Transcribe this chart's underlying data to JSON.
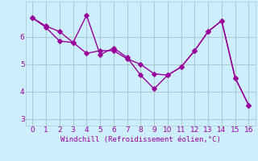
{
  "x": [
    0,
    1,
    2,
    3,
    4,
    5,
    6,
    7,
    8,
    9,
    10,
    11,
    12,
    13,
    14,
    15,
    16
  ],
  "line1": [
    6.7,
    6.4,
    6.2,
    5.8,
    5.4,
    5.5,
    5.5,
    5.2,
    5.0,
    4.65,
    4.6,
    4.9,
    5.5,
    6.2,
    6.6,
    4.5,
    3.5
  ],
  "line2": [
    6.7,
    6.35,
    5.85,
    5.8,
    6.8,
    5.35,
    5.6,
    5.25,
    4.6,
    4.1,
    4.6,
    4.9,
    5.5,
    6.2,
    6.6,
    4.5,
    3.5
  ],
  "line_color": "#990099",
  "bg_color": "#cceeff",
  "grid_color": "#aacccc",
  "xlabel": "Windchill (Refroidissement éolien,°C)",
  "xlabel_color": "#990099",
  "xlim": [
    -0.5,
    16.5
  ],
  "ylim": [
    2.75,
    7.3
  ],
  "yticks": [
    3,
    4,
    5,
    6
  ],
  "xticks": [
    0,
    1,
    2,
    3,
    4,
    5,
    6,
    7,
    8,
    9,
    10,
    11,
    12,
    13,
    14,
    15,
    16
  ]
}
